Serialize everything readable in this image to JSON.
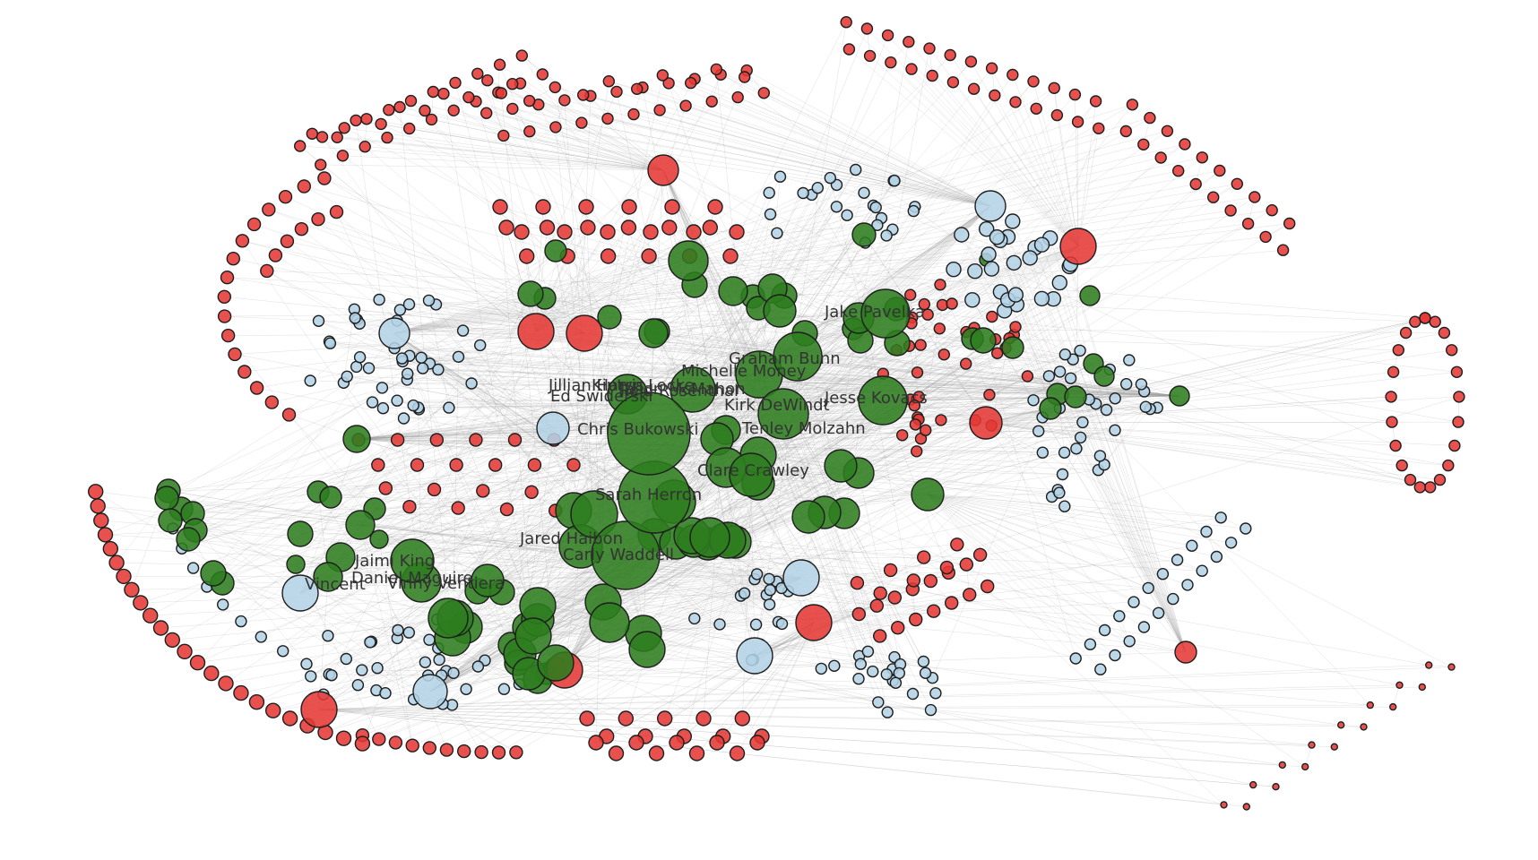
{
  "colors": {
    "person": "#2e7d1f",
    "red_group": "#e53935",
    "blue_group": "#b3d3e6",
    "edge": "#999999",
    "label": "#333333"
  },
  "labels": [
    "Jake Pavelka",
    "Graham Bunn",
    "Michelle Money",
    "Jillian Harris",
    "Ed Swiderski",
    "Kiptyn Locke",
    "Reid Rosenthal",
    "Jason McMahon",
    "Kirk DeWindt",
    "Jesse Kovacs",
    "Chris Bukowski",
    "Tenley Molzahn",
    "Clare Crawley",
    "Sarah Herron",
    "Jared Haibon",
    "Carly Waddell",
    "Jaimi King",
    "Daniel Maguire",
    "Vincent",
    "Vinny Ventiera"
  ]
}
